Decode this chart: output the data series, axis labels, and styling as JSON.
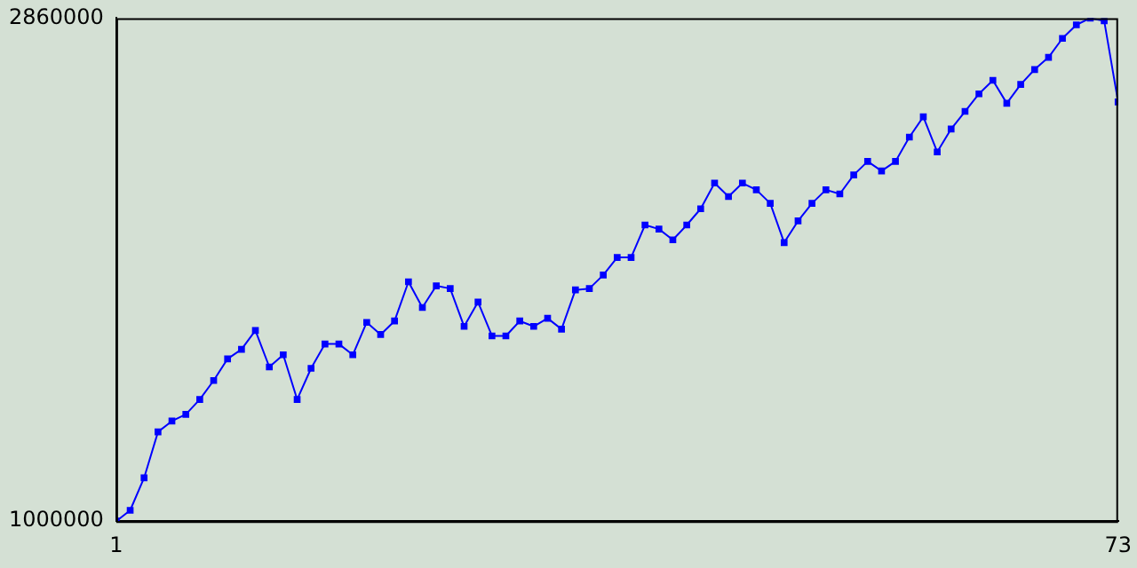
{
  "chart_data": {
    "type": "line",
    "x": [
      1,
      2,
      3,
      4,
      5,
      6,
      7,
      8,
      9,
      10,
      11,
      12,
      13,
      14,
      15,
      16,
      17,
      18,
      19,
      20,
      21,
      22,
      23,
      24,
      25,
      26,
      27,
      28,
      29,
      30,
      31,
      32,
      33,
      34,
      35,
      36,
      37,
      38,
      39,
      40,
      41,
      42,
      43,
      44,
      45,
      46,
      47,
      48,
      49,
      50,
      51,
      52,
      53,
      54,
      55,
      56,
      57,
      58,
      59,
      60,
      61,
      62,
      63,
      64,
      65,
      66,
      67,
      68,
      69,
      70,
      71,
      72,
      73
    ],
    "series": [
      {
        "color": "#0000ff",
        "values": [
          1000000,
          1040000,
          1160000,
          1330000,
          1370000,
          1395000,
          1450000,
          1520000,
          1600000,
          1635000,
          1705000,
          1570000,
          1615000,
          1450000,
          1565000,
          1655000,
          1655000,
          1615000,
          1735000,
          1690000,
          1740000,
          1885000,
          1790000,
          1870000,
          1860000,
          1720000,
          1810000,
          1685000,
          1685000,
          1740000,
          1720000,
          1750000,
          1710000,
          1855000,
          1860000,
          1910000,
          1975000,
          1975000,
          2095000,
          2080000,
          2040000,
          2095000,
          2155000,
          2250000,
          2200000,
          2250000,
          2225000,
          2175000,
          2030000,
          2110000,
          2175000,
          2225000,
          2210000,
          2280000,
          2330000,
          2295000,
          2330000,
          2420000,
          2495000,
          2365000,
          2450000,
          2515000,
          2580000,
          2630000,
          2545000,
          2615000,
          2670000,
          2715000,
          2785000,
          2835000,
          2860000,
          2850000,
          2550000
        ]
      }
    ],
    "xlim": [
      1,
      73
    ],
    "xticks": [
      1,
      73
    ],
    "ylim": [
      1000000,
      2860000
    ],
    "yticks": [
      1000000,
      2860000
    ],
    "grid": false,
    "legend": false,
    "marker": "square",
    "line_style": "solid"
  }
}
